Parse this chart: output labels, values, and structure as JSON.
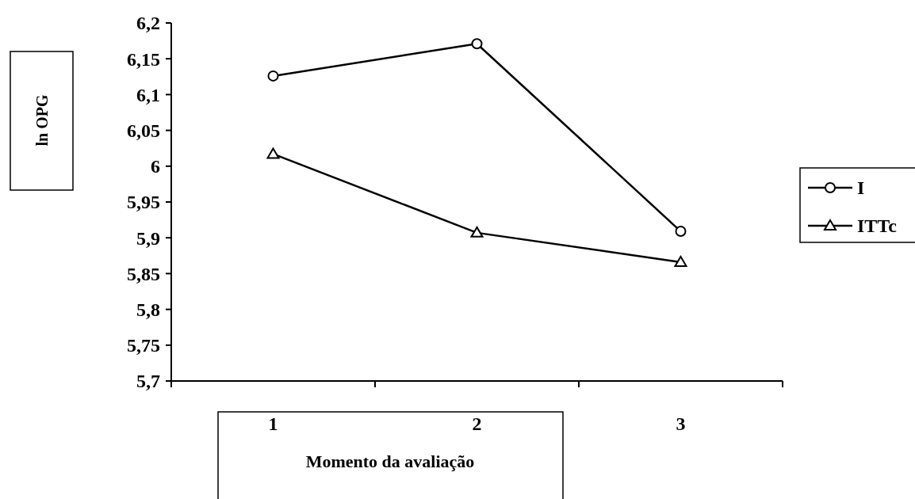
{
  "chart_data": {
    "type": "line",
    "xlabel": "Momento da avaliação",
    "ylabel": "ln OPG",
    "categories": [
      "1",
      "2",
      "3"
    ],
    "series": [
      {
        "name": "I",
        "color": "#000000",
        "marker": "circle",
        "values": [
          6.126,
          6.171,
          5.909
        ]
      },
      {
        "name": "ITTc",
        "color": "#000000",
        "marker": "triangle",
        "values": [
          6.017,
          5.907,
          5.866
        ]
      }
    ],
    "ylim": [
      5.7,
      6.2
    ],
    "yticks": [
      {
        "value": 5.7,
        "label": "5,7"
      },
      {
        "value": 5.75,
        "label": "5,75"
      },
      {
        "value": 5.8,
        "label": "5,8"
      },
      {
        "value": 5.85,
        "label": "5,85"
      },
      {
        "value": 5.9,
        "label": "5,9"
      },
      {
        "value": 5.95,
        "label": "5,95"
      },
      {
        "value": 6,
        "label": "6"
      },
      {
        "value": 6.05,
        "label": "6,05"
      },
      {
        "value": 6.1,
        "label": "6,1"
      },
      {
        "value": 6.15,
        "label": "6,15"
      },
      {
        "value": 6.2,
        "label": "6,2"
      }
    ],
    "grid": false,
    "legend": "right",
    "line_style": "solid"
  }
}
